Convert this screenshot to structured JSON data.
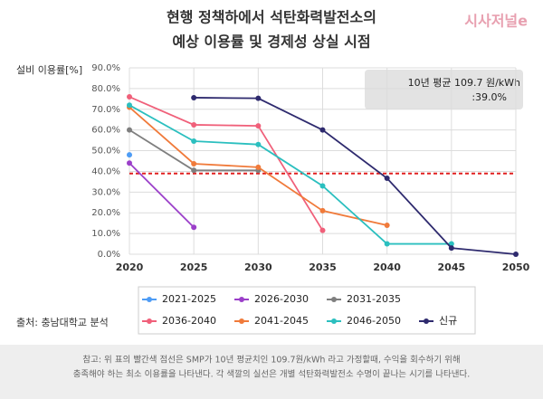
{
  "chart_data": {
    "type": "line",
    "title": [
      "현행 정책하에서 석탄화력발전소의",
      "예상 이용률 및 경제성 상실 시점"
    ],
    "y_label": "설비 이용률[%]",
    "x": [
      2020,
      2025,
      2030,
      2035,
      2040,
      2045,
      2050
    ],
    "xlim": [
      2020,
      2050
    ],
    "xticks": [
      2020,
      2025,
      2030,
      2035,
      2040,
      2045,
      2050
    ],
    "ylim": [
      0,
      90
    ],
    "yticks": [
      {
        "value": 0,
        "label": "0.0%"
      },
      {
        "value": 10,
        "label": "10.0%"
      },
      {
        "value": 20,
        "label": "20.0%"
      },
      {
        "value": 30,
        "label": "30.0%"
      },
      {
        "value": 40,
        "label": "40.0%"
      },
      {
        "value": 50,
        "label": "50.0%"
      },
      {
        "value": 60,
        "label": "60.0%"
      },
      {
        "value": 70,
        "label": "70.0%"
      },
      {
        "value": 80,
        "label": "80.0%"
      },
      {
        "value": 90,
        "label": "90.0%"
      }
    ],
    "grid": true,
    "series": [
      {
        "name": "2021-2025",
        "color": "#4e9cf5",
        "values": [
          48,
          null,
          null,
          null,
          null,
          null,
          null
        ]
      },
      {
        "name": "2026-2030",
        "color": "#9b3fc9",
        "values": [
          44,
          13,
          null,
          null,
          null,
          null,
          null
        ]
      },
      {
        "name": "2031-2035",
        "color": "#7f7f7f",
        "values": [
          60,
          40.5,
          40.5,
          null,
          null,
          null,
          null
        ]
      },
      {
        "name": "2036-2040",
        "color": "#f0607a",
        "values": [
          76,
          62.5,
          62,
          11.5,
          null,
          null,
          null
        ]
      },
      {
        "name": "2041-2045",
        "color": "#f07a3a",
        "values": [
          71,
          43.7,
          42,
          21,
          14,
          null,
          null
        ]
      },
      {
        "name": "2046-2050",
        "color": "#2bbfbf",
        "values": [
          72,
          54.6,
          53,
          33,
          5,
          5,
          null
        ]
      },
      {
        "name": "신규",
        "color": "#2e2a6e",
        "values": [
          null,
          75.6,
          75.3,
          60,
          36.7,
          3,
          0
        ]
      }
    ],
    "reference_line": {
      "value": 39,
      "color": "#e02020"
    },
    "annotation": [
      "10년 평균 109.7 원/kWh",
      ":39.0%"
    ]
  },
  "logo": "시사저널e",
  "source": "출처: 충남대학교 분석",
  "note": [
    "참고: 위 표의 빨간색 점선은 SMP가 10년 평균치인 109.7원/kWh 라고 가정할때, 수익을 회수하기 위해",
    "충족해야 하는 최소 이용률을 나타낸다. 각 색깔의 실선은 개별 석탄화력발전소 수명이 끝나는 시기를 나타낸다."
  ]
}
